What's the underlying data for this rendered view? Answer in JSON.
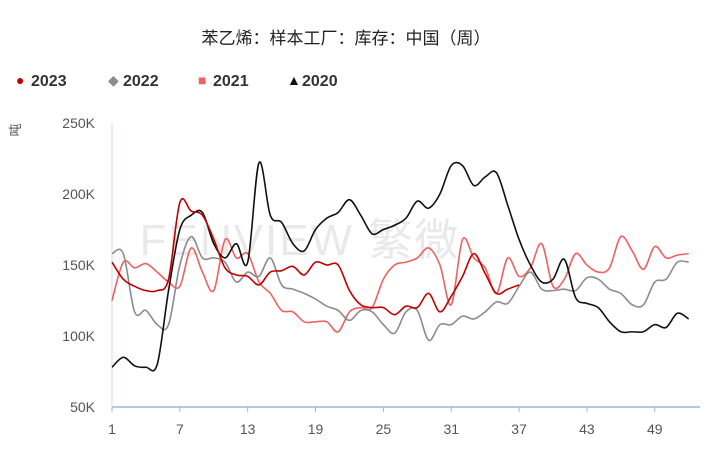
{
  "chart_data": {
    "type": "line",
    "title": "苯乙烯：样本工厂：库存：中国（周）",
    "ylabel": "吨",
    "watermark": "FENVIEW 繁微",
    "ylim": [
      50000,
      250000
    ],
    "xlim": [
      1,
      53
    ],
    "yticks": [
      50000,
      100000,
      150000,
      200000,
      250000
    ],
    "ytick_labels": [
      "50K",
      "100K",
      "150K",
      "200K",
      "250K"
    ],
    "xticks": [
      1,
      7,
      13,
      19,
      25,
      31,
      37,
      43,
      49
    ],
    "xtick_labels": [
      "1",
      "7",
      "13",
      "19",
      "25",
      "31",
      "37",
      "43",
      "49"
    ],
    "legend_position": "top-left",
    "series": [
      {
        "name": "2023",
        "color": "#c00000",
        "marker": "●",
        "x": [
          1,
          2,
          3,
          4,
          5,
          6,
          7,
          8,
          9,
          10,
          11,
          12,
          13,
          14,
          15,
          16,
          17,
          18,
          19,
          20,
          21,
          22,
          23,
          24,
          25,
          26,
          27,
          28,
          29,
          30,
          31,
          32,
          33,
          34,
          35,
          36,
          37
        ],
        "values": [
          152000,
          140000,
          135000,
          132000,
          132000,
          140000,
          194000,
          188000,
          185000,
          168000,
          148000,
          143000,
          142000,
          136000,
          145000,
          146000,
          149000,
          143000,
          152000,
          150000,
          150000,
          132000,
          122000,
          120000,
          120000,
          115000,
          121000,
          120000,
          130000,
          117000,
          128000,
          142000,
          158000,
          144000,
          130000,
          133000,
          136000
        ]
      },
      {
        "name": "2022",
        "color": "#8c8c8c",
        "marker": "◆",
        "x": [
          1,
          2,
          3,
          4,
          5,
          6,
          7,
          8,
          9,
          10,
          11,
          12,
          13,
          14,
          15,
          16,
          17,
          18,
          19,
          20,
          21,
          22,
          23,
          24,
          25,
          26,
          27,
          28,
          29,
          30,
          31,
          32,
          33,
          34,
          35,
          36,
          37,
          38,
          39,
          40,
          41,
          42,
          43,
          44,
          45,
          46,
          47,
          48,
          49,
          50,
          51,
          52
        ],
        "values": [
          158000,
          158000,
          117000,
          118000,
          108000,
          108000,
          150000,
          170000,
          155000,
          155000,
          152000,
          138000,
          145000,
          142000,
          155000,
          136000,
          133000,
          130000,
          126000,
          121000,
          118000,
          111000,
          118000,
          117000,
          108000,
          102000,
          117000,
          118000,
          97000,
          108000,
          108000,
          114000,
          112000,
          117000,
          124000,
          123000,
          135000,
          145000,
          133000,
          132000,
          133000,
          132000,
          141000,
          140000,
          133000,
          130000,
          122000,
          122000,
          138000,
          140000,
          152000,
          152000
        ]
      },
      {
        "name": "2021",
        "color": "#f06060",
        "marker": "■",
        "x": [
          1,
          2,
          3,
          4,
          5,
          6,
          7,
          8,
          9,
          10,
          11,
          12,
          13,
          14,
          15,
          16,
          17,
          18,
          19,
          20,
          21,
          22,
          23,
          24,
          25,
          26,
          27,
          28,
          29,
          30,
          31,
          32,
          33,
          34,
          35,
          36,
          37,
          38,
          39,
          40,
          41,
          42,
          43,
          44,
          45,
          46,
          47,
          48,
          49,
          50,
          51,
          52
        ],
        "values": [
          125000,
          152000,
          148000,
          151000,
          145000,
          138000,
          135000,
          162000,
          145000,
          132000,
          168000,
          155000,
          158000,
          138000,
          130000,
          118000,
          117000,
          110000,
          110000,
          110000,
          103000,
          117000,
          120000,
          120000,
          140000,
          150000,
          152000,
          155000,
          162000,
          150000,
          122000,
          168000,
          155000,
          148000,
          130000,
          155000,
          142000,
          148000,
          165000,
          135000,
          140000,
          158000,
          150000,
          145000,
          148000,
          170000,
          160000,
          147000,
          163000,
          155000,
          157000,
          158000
        ]
      },
      {
        "name": "2020",
        "color": "#111111",
        "marker": "▲",
        "x": [
          1,
          2,
          3,
          4,
          5,
          6,
          7,
          8,
          9,
          10,
          11,
          12,
          13,
          14,
          15,
          16,
          17,
          18,
          19,
          20,
          21,
          22,
          23,
          24,
          25,
          26,
          27,
          28,
          29,
          30,
          31,
          32,
          33,
          34,
          35,
          36,
          37,
          38,
          39,
          40,
          41,
          42,
          43,
          44,
          45,
          46,
          47,
          48,
          49,
          50,
          51,
          52
        ],
        "values": [
          78000,
          85000,
          79000,
          78000,
          80000,
          132000,
          175000,
          185000,
          187000,
          165000,
          155000,
          165000,
          152000,
          222000,
          185000,
          180000,
          165000,
          160000,
          175000,
          183000,
          187000,
          196000,
          185000,
          172000,
          175000,
          178000,
          183000,
          195000,
          190000,
          200000,
          220000,
          220000,
          206000,
          212000,
          215000,
          192000,
          168000,
          150000,
          138000,
          140000,
          154000,
          127000,
          123000,
          120000,
          110000,
          103000,
          103000,
          103000,
          108000,
          106000,
          116000,
          112000
        ]
      }
    ]
  }
}
